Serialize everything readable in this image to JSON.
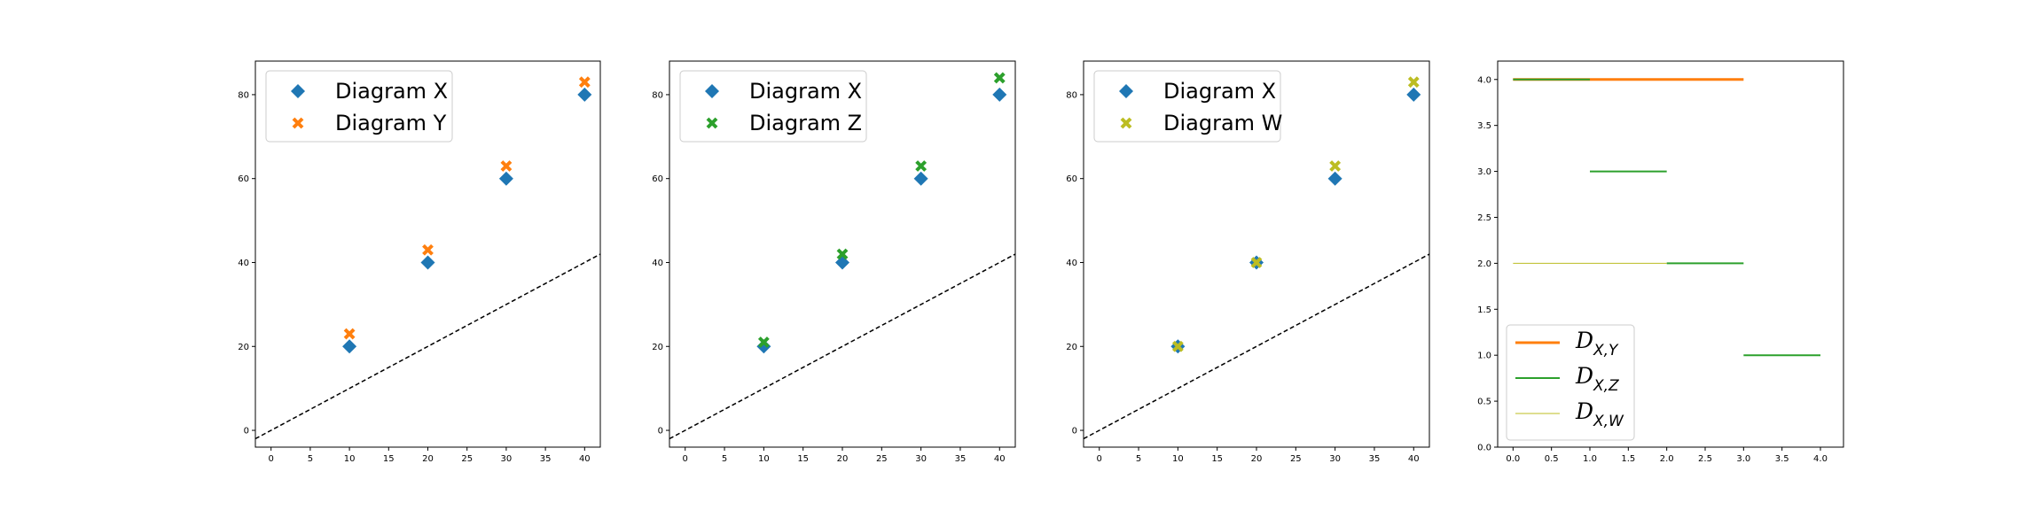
{
  "colors": {
    "x": "#1f77b4",
    "y": "#ff7f0e",
    "z": "#2ca02c",
    "w": "#bcbd22",
    "ref": "#000000",
    "d_xy": "#ff7f0e",
    "d_xz": "#2ca02c",
    "d_xw": "#bcbd22"
  },
  "chart_data": [
    {
      "type": "scatter",
      "xlim": [
        -2,
        42
      ],
      "ylim": [
        -4,
        88
      ],
      "xticks": [
        "0",
        "5",
        "10",
        "15",
        "20",
        "25",
        "30",
        "35",
        "40"
      ],
      "yticks": [
        "0",
        "20",
        "40",
        "60",
        "80"
      ],
      "legend_position": "top-left",
      "series": [
        {
          "name": "Diagram X",
          "marker": "diamond",
          "color": "#1f77b4",
          "x": [
            10,
            20,
            30,
            40
          ],
          "y": [
            20,
            40,
            60,
            80
          ]
        },
        {
          "name": "Diagram Y",
          "marker": "x",
          "color": "#ff7f0e",
          "x": [
            10,
            20,
            30,
            40
          ],
          "y": [
            23,
            43,
            63,
            83
          ]
        }
      ],
      "reference_line": {
        "style": "dashed",
        "slope": 1,
        "intercept": 0
      }
    },
    {
      "type": "scatter",
      "xlim": [
        -2,
        42
      ],
      "ylim": [
        -4,
        88
      ],
      "xticks": [
        "0",
        "5",
        "10",
        "15",
        "20",
        "25",
        "30",
        "35",
        "40"
      ],
      "yticks": [
        "0",
        "20",
        "40",
        "60",
        "80"
      ],
      "legend_position": "top-left",
      "series": [
        {
          "name": "Diagram X",
          "marker": "diamond",
          "color": "#1f77b4",
          "x": [
            10,
            20,
            30,
            40
          ],
          "y": [
            20,
            40,
            60,
            80
          ]
        },
        {
          "name": "Diagram Z",
          "marker": "x",
          "color": "#2ca02c",
          "x": [
            10,
            20,
            30,
            40
          ],
          "y": [
            21,
            42,
            63,
            84
          ]
        }
      ],
      "reference_line": {
        "style": "dashed",
        "slope": 1,
        "intercept": 0
      }
    },
    {
      "type": "scatter",
      "xlim": [
        -2,
        42
      ],
      "ylim": [
        -4,
        88
      ],
      "xticks": [
        "0",
        "5",
        "10",
        "15",
        "20",
        "25",
        "30",
        "35",
        "40"
      ],
      "yticks": [
        "0",
        "20",
        "40",
        "60",
        "80"
      ],
      "legend_position": "top-left",
      "series": [
        {
          "name": "Diagram X",
          "marker": "diamond",
          "color": "#1f77b4",
          "x": [
            10,
            20,
            30,
            40
          ],
          "y": [
            20,
            40,
            60,
            80
          ]
        },
        {
          "name": "Diagram W",
          "marker": "x",
          "color": "#bcbd22",
          "x": [
            10,
            20,
            30,
            40
          ],
          "y": [
            20,
            40,
            63,
            83
          ]
        }
      ],
      "reference_line": {
        "style": "dashed",
        "slope": 1,
        "intercept": 0
      }
    },
    {
      "type": "line",
      "xlim": [
        -0.2,
        4.3
      ],
      "ylim": [
        0,
        4.2
      ],
      "xticks": [
        "0.0",
        "0.5",
        "1.0",
        "1.5",
        "2.0",
        "2.5",
        "3.0",
        "3.5",
        "4.0"
      ],
      "yticks": [
        "0.0",
        "0.5",
        "1.0",
        "1.5",
        "2.0",
        "2.5",
        "3.0",
        "3.5",
        "4.0"
      ],
      "legend_position": "bottom-left",
      "series": [
        {
          "legend_main": "D",
          "legend_sub": "X,Y",
          "color": "#ff7f0e",
          "width": 3,
          "segments": [
            [
              0,
              3,
              4
            ]
          ]
        },
        {
          "legend_main": "D",
          "legend_sub": "X,Z",
          "color": "#2ca02c",
          "width": 2,
          "segments": [
            [
              0,
              1,
              4
            ],
            [
              1,
              2,
              3
            ],
            [
              2,
              3,
              2
            ],
            [
              3,
              4,
              1
            ]
          ]
        },
        {
          "legend_main": "D",
          "legend_sub": "X,W",
          "color": "#bcbd22",
          "width": 1,
          "segments": [
            [
              0,
              2,
              2
            ]
          ]
        }
      ]
    }
  ]
}
